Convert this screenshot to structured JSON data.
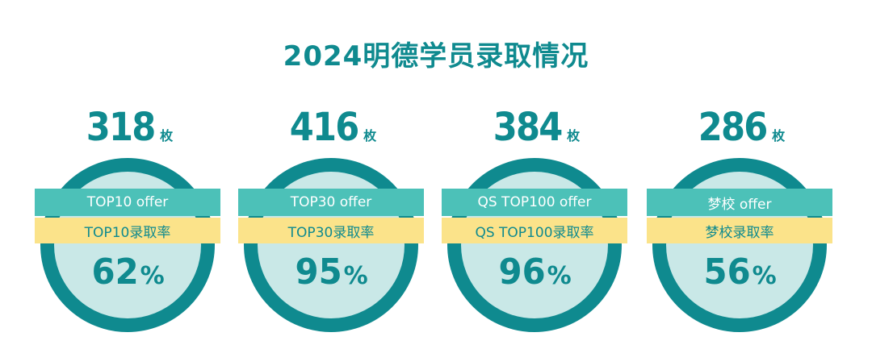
{
  "title": "2024明德学员录取情况",
  "colors": {
    "primary": "#0f8a8f",
    "offer_band": "#4cc1b8",
    "rate_band": "#fbe38a",
    "ring_fill": "#c9e8e7"
  },
  "stats": [
    {
      "count": "318",
      "unit": "枚",
      "offer_label": "TOP10 offer",
      "rate_label": "TOP10录取率",
      "rate_value": "62",
      "rate_suffix": "%"
    },
    {
      "count": "416",
      "unit": "枚",
      "offer_label": "TOP30 offer",
      "rate_label": "TOP30录取率",
      "rate_value": "95",
      "rate_suffix": "%"
    },
    {
      "count": "384",
      "unit": "枚",
      "offer_label": "QS TOP100 offer",
      "rate_label": "QS TOP100录取率",
      "rate_value": "96",
      "rate_suffix": "%"
    },
    {
      "count": "286",
      "unit": "枚",
      "offer_label": "梦校 offer",
      "rate_label": "梦校录取率",
      "rate_value": "56",
      "rate_suffix": "%"
    }
  ]
}
